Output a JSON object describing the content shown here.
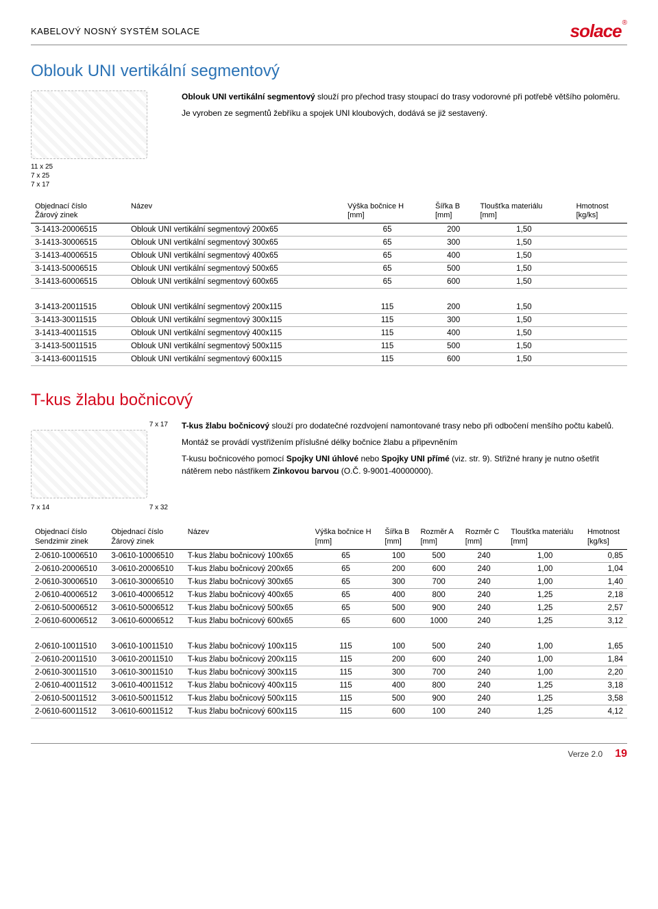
{
  "header": {
    "title": "KABELOVÝ NOSNÝ SYSTÉM SOLACE",
    "logo_text": "solace",
    "logo_reg": "®",
    "logo_color": "#d4091e"
  },
  "colors": {
    "section1_title": "#2a72b5",
    "section2_title": "#d4091e",
    "footer_page": "#d4091e"
  },
  "section1": {
    "title": "Oblouk UNI vertikální segmentový",
    "dims": [
      "11 x 25",
      "7 x 25",
      "7 x 17"
    ],
    "desc_bold": "Oblouk UNI vertikální segmentový",
    "desc_rest": " slouží pro přechod trasy stoupací do trasy vodorovné při potřebě většího poloměru.",
    "desc_line2": "Je vyroben ze segmentů žebříku a spojek UNI kloubových, dodává se již sestavený.",
    "columns": [
      {
        "l1": "Objednací číslo",
        "l2": "Žárový zinek"
      },
      {
        "l1": "Název",
        "l2": ""
      },
      {
        "l1": "Výška bočnice H",
        "l2": "[mm]"
      },
      {
        "l1": "Šířka B",
        "l2": "[mm]"
      },
      {
        "l1": "Tloušťka materiálu",
        "l2": "[mm]"
      },
      {
        "l1": "Hmotnost",
        "l2": "[kg/ks]"
      }
    ],
    "rows1": [
      [
        "3-1413-20006515",
        "Oblouk UNI vertikální segmentový 200x65",
        "65",
        "200",
        "1,50",
        ""
      ],
      [
        "3-1413-30006515",
        "Oblouk UNI vertikální segmentový 300x65",
        "65",
        "300",
        "1,50",
        ""
      ],
      [
        "3-1413-40006515",
        "Oblouk UNI vertikální segmentový 400x65",
        "65",
        "400",
        "1,50",
        ""
      ],
      [
        "3-1413-50006515",
        "Oblouk UNI vertikální segmentový 500x65",
        "65",
        "500",
        "1,50",
        ""
      ],
      [
        "3-1413-60006515",
        "Oblouk UNI vertikální segmentový 600x65",
        "65",
        "600",
        "1,50",
        ""
      ]
    ],
    "rows2": [
      [
        "3-1413-20011515",
        "Oblouk UNI vertikální segmentový 200x115",
        "115",
        "200",
        "1,50",
        ""
      ],
      [
        "3-1413-30011515",
        "Oblouk UNI vertikální segmentový 300x115",
        "115",
        "300",
        "1,50",
        ""
      ],
      [
        "3-1413-40011515",
        "Oblouk UNI vertikální segmentový 400x115",
        "115",
        "400",
        "1,50",
        ""
      ],
      [
        "3-1413-50011515",
        "Oblouk UNI vertikální segmentový 500x115",
        "115",
        "500",
        "1,50",
        ""
      ],
      [
        "3-1413-60011515",
        "Oblouk UNI vertikální segmentový 600x115",
        "115",
        "600",
        "1,50",
        ""
      ]
    ]
  },
  "section2": {
    "title": "T-kus žlabu bočnicový",
    "dims": [
      "7 x 17",
      "7 x 14",
      "7 x 32"
    ],
    "desc_bold": "T-kus žlabu bočnicový",
    "desc_rest": " slouží pro dodatečné rozdvojení namontované trasy nebo při odbočení menšího počtu kabelů.",
    "desc_line2": "Montáž se provádí vystřižením  příslušné délky bočnice žlabu a připevněním",
    "desc_line3_a": "T-kusu bočnicového pomocí ",
    "desc_line3_b": "Spojky UNI úhlové",
    "desc_line3_c": " nebo ",
    "desc_line3_d": "Spojky UNI přímé",
    "desc_line3_e": " (viz. str. 9). Střižné hrany je nutno ošetřit nátěrem nebo nástřikem ",
    "desc_line3_f": "Zinkovou barvou",
    "desc_line3_g": " (O.Č. 9-9001-40000000).",
    "columns": [
      {
        "l1": "Objednací číslo",
        "l2": "Sendzimir zinek"
      },
      {
        "l1": "Objednací číslo",
        "l2": "Žárový zinek"
      },
      {
        "l1": "Název",
        "l2": ""
      },
      {
        "l1": "Výška bočnice H",
        "l2": "[mm]"
      },
      {
        "l1": "Šířka B",
        "l2": "[mm]"
      },
      {
        "l1": "Rozměr A",
        "l2": "[mm]"
      },
      {
        "l1": "Rozměr C",
        "l2": "[mm]"
      },
      {
        "l1": "Tloušťka materiálu",
        "l2": "[mm]"
      },
      {
        "l1": "Hmotnost",
        "l2": "[kg/ks]"
      }
    ],
    "rows1": [
      [
        "2-0610-10006510",
        "3-0610-10006510",
        "T-kus žlabu bočnicový 100x65",
        "65",
        "100",
        "500",
        "240",
        "1,00",
        "0,85"
      ],
      [
        "2-0610-20006510",
        "3-0610-20006510",
        "T-kus žlabu bočnicový 200x65",
        "65",
        "200",
        "600",
        "240",
        "1,00",
        "1,04"
      ],
      [
        "2-0610-30006510",
        "3-0610-30006510",
        "T-kus žlabu bočnicový 300x65",
        "65",
        "300",
        "700",
        "240",
        "1,00",
        "1,40"
      ],
      [
        "2-0610-40006512",
        "3-0610-40006512",
        "T-kus žlabu bočnicový 400x65",
        "65",
        "400",
        "800",
        "240",
        "1,25",
        "2,18"
      ],
      [
        "2-0610-50006512",
        "3-0610-50006512",
        "T-kus žlabu bočnicový 500x65",
        "65",
        "500",
        "900",
        "240",
        "1,25",
        "2,57"
      ],
      [
        "2-0610-60006512",
        "3-0610-60006512",
        "T-kus žlabu bočnicový 600x65",
        "65",
        "600",
        "1000",
        "240",
        "1,25",
        "3,12"
      ]
    ],
    "rows2": [
      [
        "2-0610-10011510",
        "3-0610-10011510",
        "T-kus žlabu bočnicový 100x115",
        "115",
        "100",
        "500",
        "240",
        "1,00",
        "1,65"
      ],
      [
        "2-0610-20011510",
        "3-0610-20011510",
        "T-kus žlabu bočnicový 200x115",
        "115",
        "200",
        "600",
        "240",
        "1,00",
        "1,84"
      ],
      [
        "2-0610-30011510",
        "3-0610-30011510",
        "T-kus žlabu bočnicový 300x115",
        "115",
        "300",
        "700",
        "240",
        "1,00",
        "2,20"
      ],
      [
        "2-0610-40011512",
        "3-0610-40011512",
        "T-kus žlabu bočnicový 400x115",
        "115",
        "400",
        "800",
        "240",
        "1,25",
        "3,18"
      ],
      [
        "2-0610-50011512",
        "3-0610-50011512",
        "T-kus žlabu bočnicový 500x115",
        "115",
        "500",
        "900",
        "240",
        "1,25",
        "3,58"
      ],
      [
        "2-0610-60011512",
        "3-0610-60011512",
        "T-kus žlabu bočnicový 600x115",
        "115",
        "600",
        "100",
        "240",
        "1,25",
        "4,12"
      ]
    ]
  },
  "footer": {
    "version": "Verze 2.0",
    "page": "19"
  }
}
